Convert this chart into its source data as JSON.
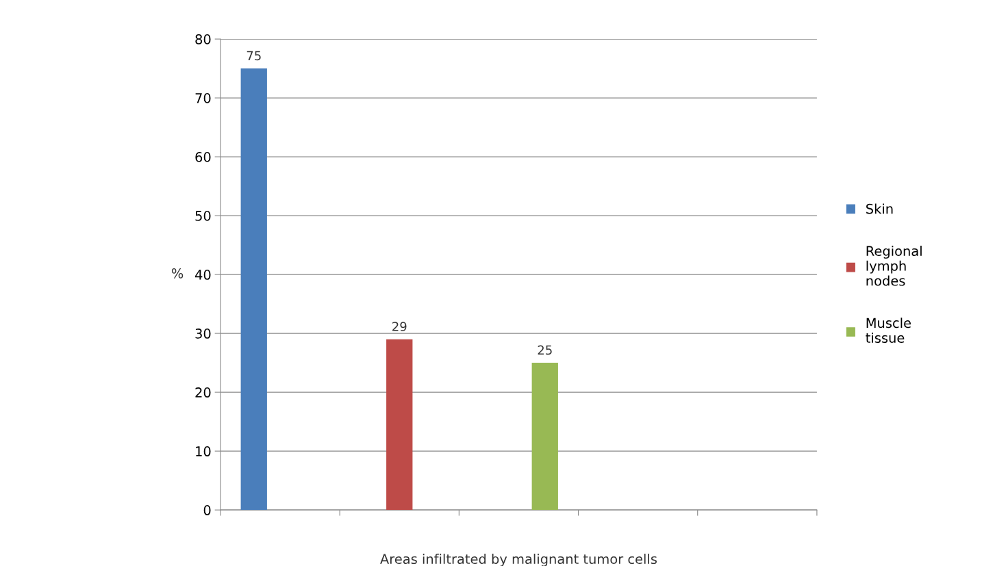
{
  "chart_data": {
    "type": "bar",
    "xlabel": "Areas infiltrated by malignant tumor cells",
    "ylabel": "%",
    "categories": [
      null,
      null,
      null,
      null,
      null
    ],
    "series": [
      {
        "name": "Skin",
        "color": "#4a7ebb",
        "values": [
          75,
          null,
          null,
          null,
          null
        ]
      },
      {
        "name": "Regional lymph nodes",
        "color": "#be4b48",
        "values": [
          null,
          29,
          null,
          null,
          null
        ]
      },
      {
        "name": "Muscle tissue",
        "color": "#98b954",
        "values": [
          null,
          null,
          25,
          null,
          null
        ]
      }
    ],
    "ylim": [
      0,
      80
    ],
    "yticks": [
      0,
      10,
      20,
      30,
      40,
      50,
      60,
      70,
      80
    ],
    "grid": "y",
    "legend": "right",
    "data_labels": true,
    "tick_labels": "y"
  }
}
